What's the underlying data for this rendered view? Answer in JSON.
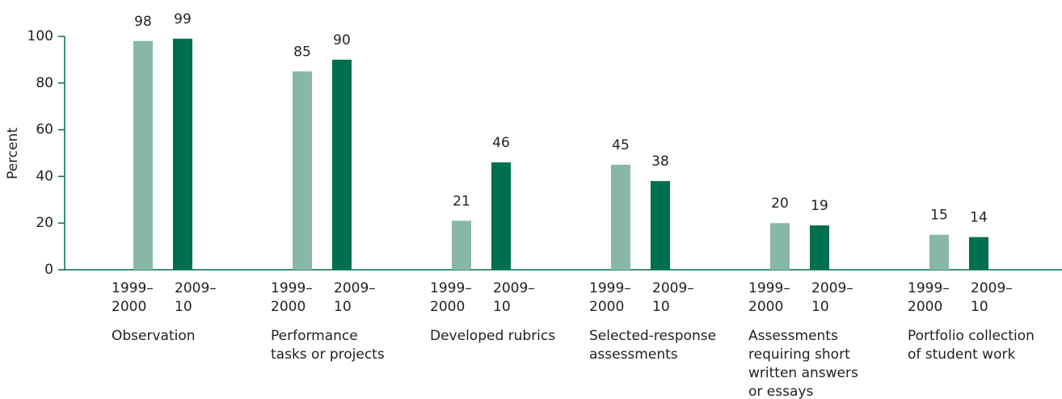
{
  "chart_data": {
    "type": "bar",
    "y_label": "Percent",
    "categories": [
      [
        "Observation"
      ],
      [
        "Performance",
        "tasks or projects"
      ],
      [
        "Developed rubrics"
      ],
      [
        "Selected-response",
        "assessments"
      ],
      [
        "Assessments",
        "requiring short",
        "written answers",
        "or essays"
      ],
      [
        "Portfolio collection",
        "of student work"
      ]
    ],
    "series": [
      {
        "name": [
          "1999–",
          "2000"
        ],
        "color": "#88b8a5",
        "values": [
          98,
          85,
          21,
          45,
          20,
          15
        ]
      },
      {
        "name": [
          "2009–",
          "10"
        ],
        "color": "#006f4e",
        "values": [
          99,
          90,
          46,
          38,
          19,
          14
        ]
      }
    ],
    "ylim": [
      0,
      100
    ],
    "yticks": [
      0,
      20,
      40,
      60,
      80,
      100
    ]
  }
}
